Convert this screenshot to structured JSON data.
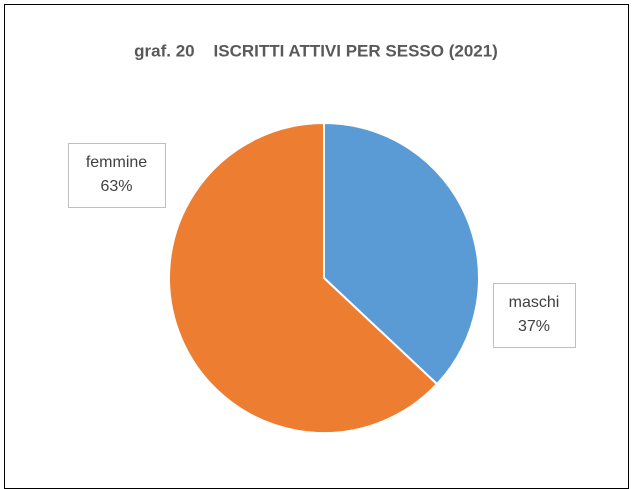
{
  "chart_data": {
    "type": "pie",
    "title": "graf. 20    ISCRITTI ATTIVI PER SESSO (2021)",
    "categories": [
      "maschi",
      "femmine"
    ],
    "values": [
      37,
      63
    ],
    "value_labels": [
      "37%",
      "63%"
    ],
    "colors": [
      "#5b9bd5",
      "#ed7d31"
    ]
  }
}
